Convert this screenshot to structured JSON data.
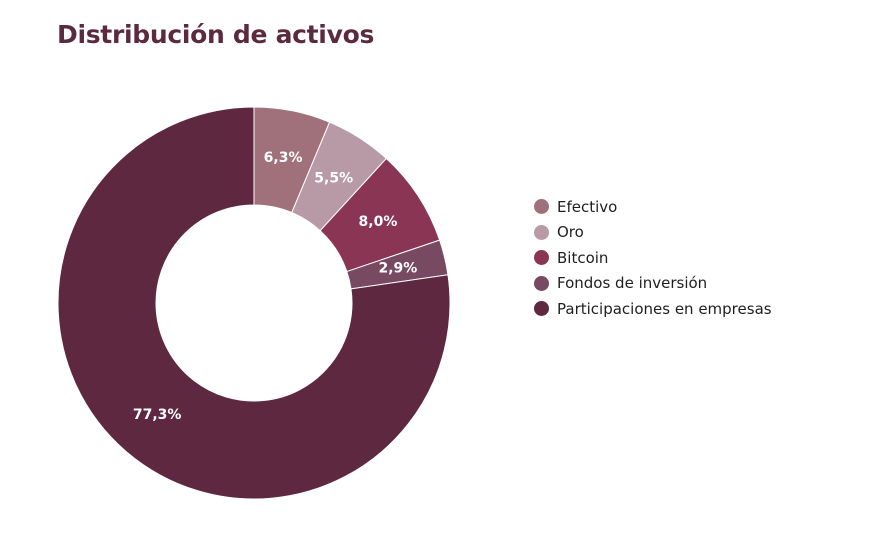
{
  "chart_data": {
    "type": "pie",
    "variant": "donut",
    "title": "Distribución de activos",
    "legend_position": "right",
    "slices": [
      {
        "name": "Efectivo",
        "value": 6.3,
        "label": "6,3%",
        "color": "#a0717a"
      },
      {
        "name": "Oro",
        "value": 5.5,
        "label": "5,5%",
        "color": "#b89aa7"
      },
      {
        "name": "Bitcoin",
        "value": 8.0,
        "label": "8,0%",
        "color": "#8a3553"
      },
      {
        "name": "Fondos de inversión",
        "value": 2.9,
        "label": "2,9%",
        "color": "#774a61"
      },
      {
        "name": "Participaciones en empresas",
        "value": 77.3,
        "label": "77,3%",
        "color": "#5e2840"
      }
    ]
  }
}
